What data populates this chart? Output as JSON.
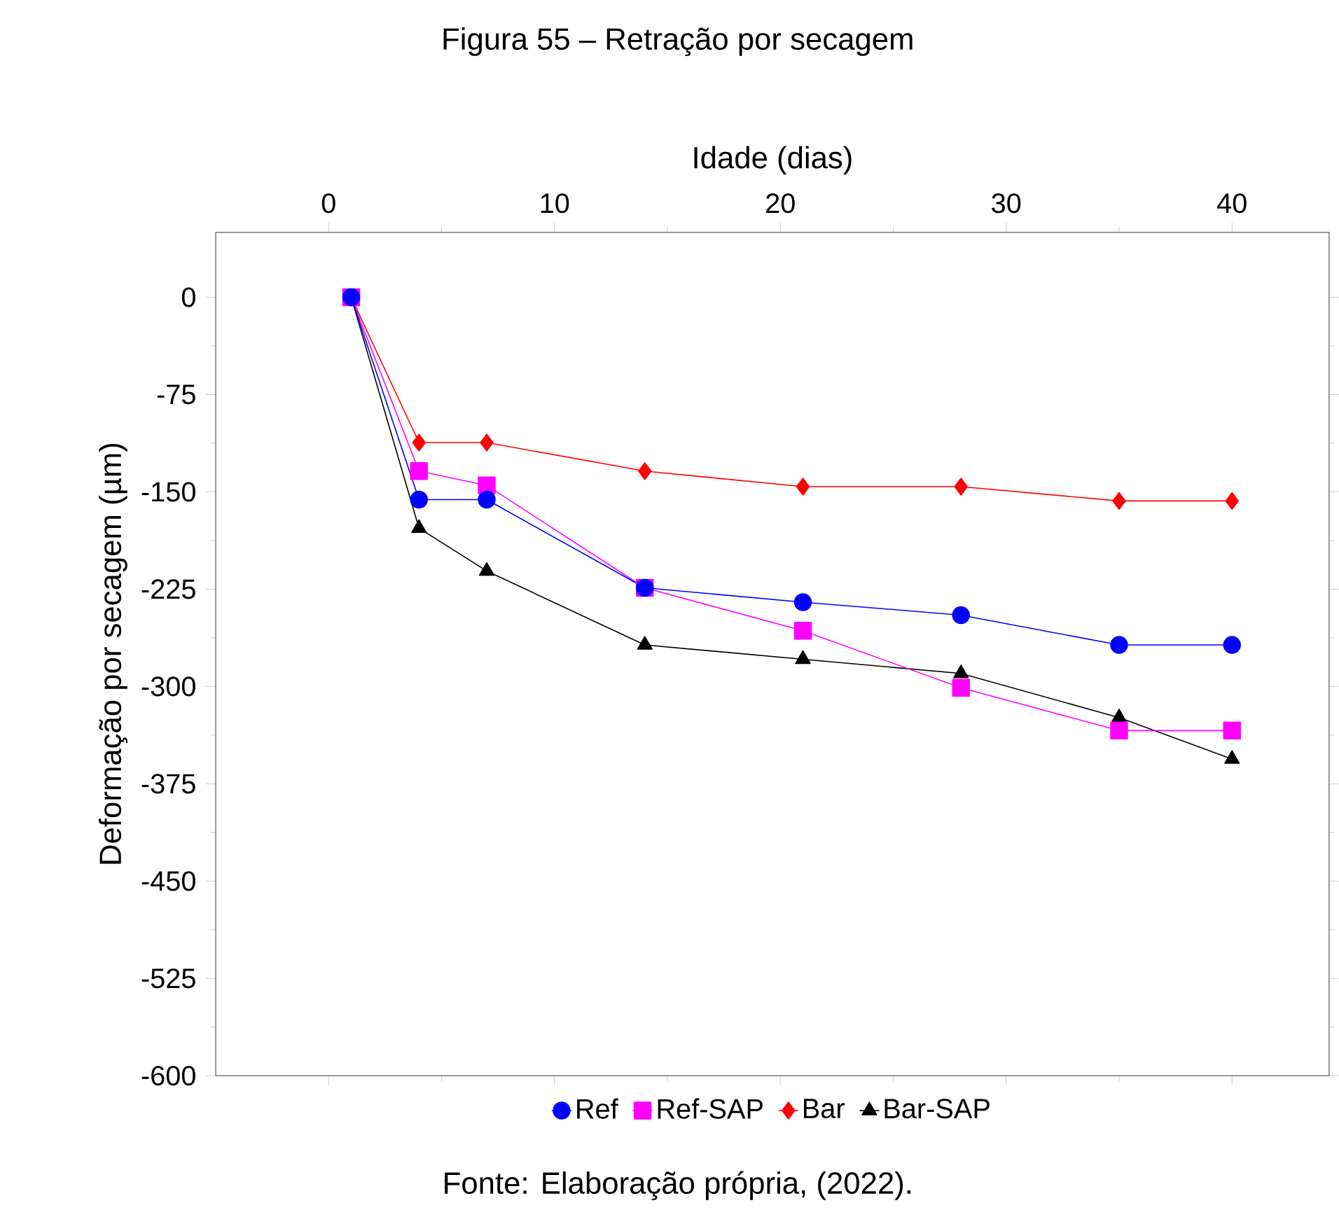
{
  "chart_data": {
    "type": "line",
    "title": "Figura 55 – Retração por secagem",
    "xlabel": "Idade (dias)",
    "ylabel": "Deformação por secagem (µm)",
    "x": [
      1,
      4,
      7,
      14,
      21,
      28,
      35,
      40
    ],
    "series": [
      {
        "name": "Ref",
        "color": "#0000ff",
        "marker": "circle",
        "values": [
          0,
          -156,
          -156,
          -224,
          -235,
          -245,
          -268,
          -268
        ]
      },
      {
        "name": "Ref-SAP",
        "color": "#ff00ff",
        "marker": "square",
        "values": [
          0,
          -134,
          -145,
          -224,
          -257,
          -301,
          -334,
          -334
        ]
      },
      {
        "name": "Bar",
        "color": "#ff0000",
        "marker": "diamond",
        "values": [
          0,
          -112,
          -112,
          -134,
          -146,
          -146,
          -157,
          -157
        ]
      },
      {
        "name": "Bar-SAP",
        "color": "#000000",
        "marker": "triangle",
        "values": [
          0,
          -178,
          -211,
          -268,
          -279,
          -290,
          -324,
          -356
        ]
      }
    ],
    "xlim": [
      -5,
      44.3
    ],
    "ylim": [
      -600,
      50
    ],
    "xticks": [
      0,
      10,
      20,
      30,
      40
    ],
    "yticks": [
      0,
      -75,
      -150,
      -225,
      -300,
      -375,
      -450,
      -525,
      -600
    ],
    "grid": false,
    "legend": "bottom",
    "line_style": "solid",
    "annotations": [
      "Fonte: Elaboração própria, (2022)."
    ]
  }
}
